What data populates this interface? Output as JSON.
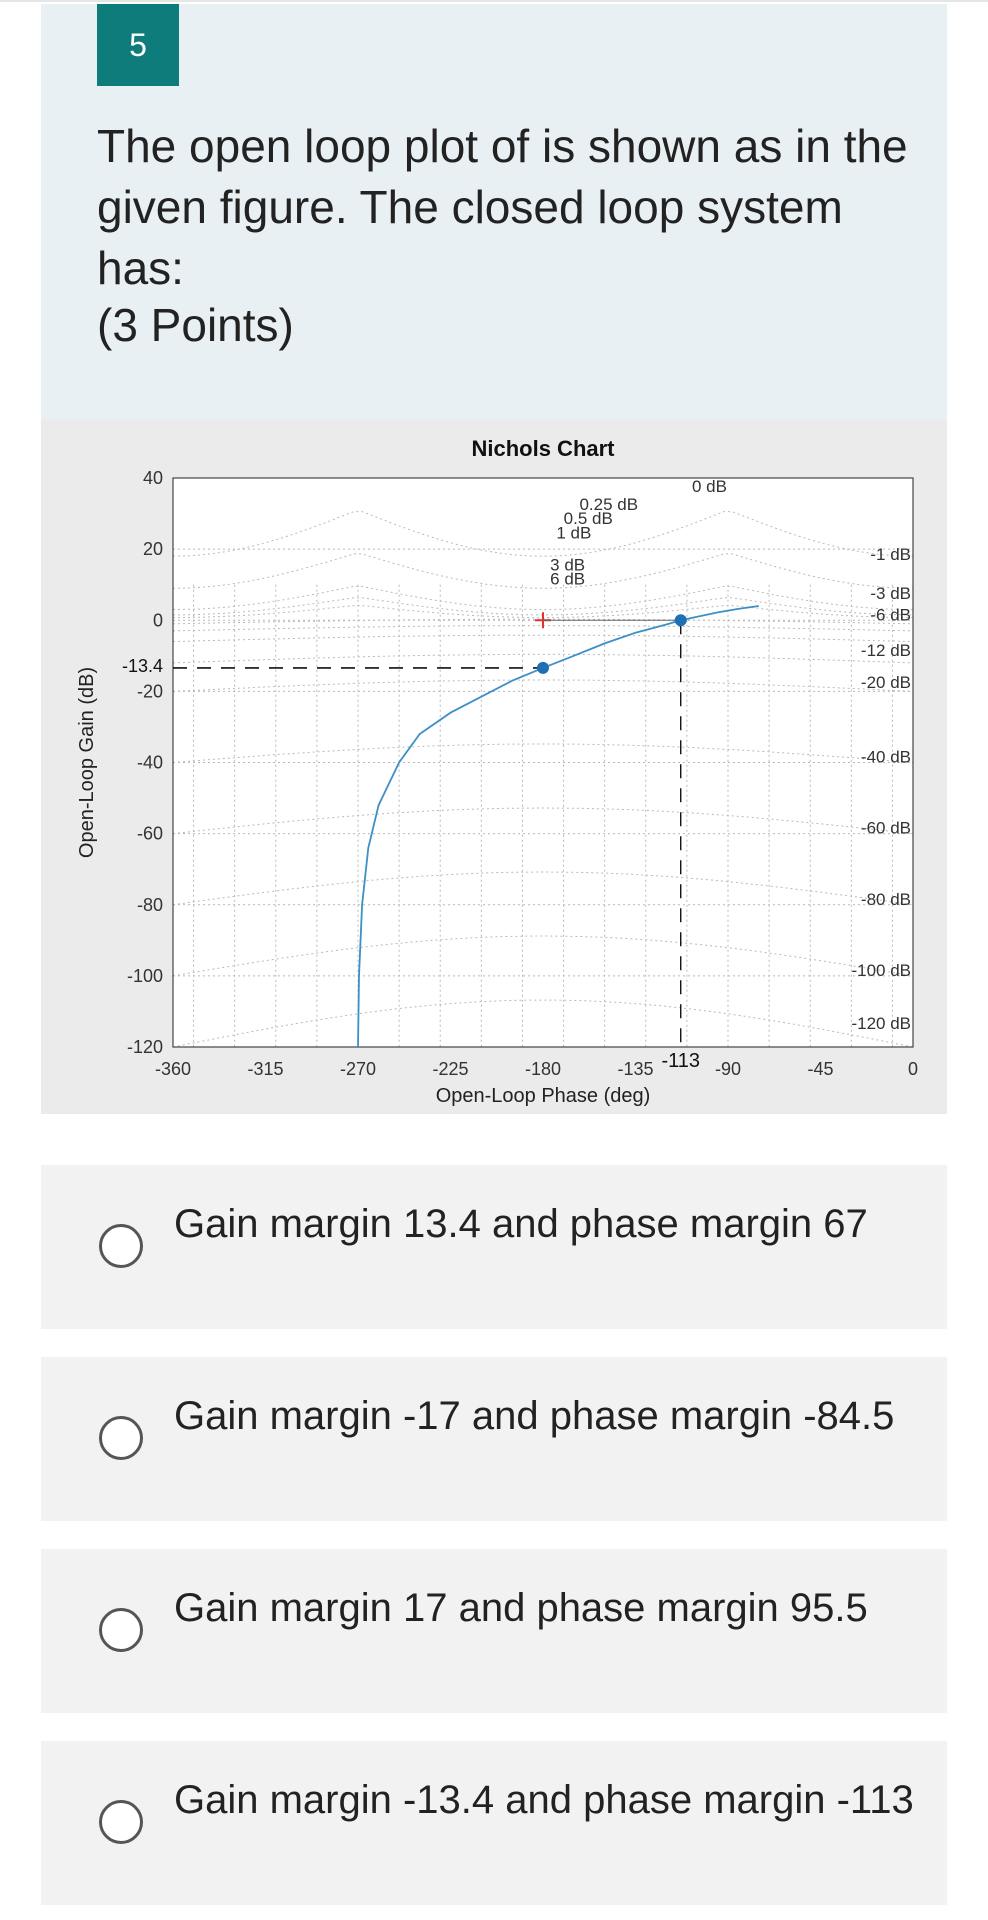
{
  "question": {
    "number": "5",
    "text": "The open loop plot of is shown as in the given figure. The closed loop system has:",
    "points": "(3 Points)"
  },
  "chart_data": {
    "type": "line",
    "title": "Nichols Chart",
    "xlabel": "Open-Loop Phase (deg)",
    "ylabel": "Open-Loop Gain (dB)",
    "xlim": [
      -360,
      0
    ],
    "ylim": [
      -120,
      40
    ],
    "xticks": [
      "-360",
      "-315",
      "-270",
      "-225",
      "-180",
      "-135",
      "-90",
      "-45",
      "0"
    ],
    "yticks": [
      "40",
      "20",
      "0",
      "-20",
      "-40",
      "-60",
      "-80",
      "-100",
      "-120"
    ],
    "grid": true,
    "series": [
      {
        "color": "#3c8fc7",
        "x": [
          -270,
          -269.5,
          -268,
          -265,
          -260,
          -250,
          -240,
          -225,
          -210,
          -195,
          -180,
          -165,
          -150,
          -135,
          -120,
          -113,
          -105,
          -95,
          -85,
          -75
        ],
        "y": [
          -120,
          -100,
          -80,
          -64,
          -52,
          -40,
          -32,
          -26,
          -21.5,
          -17,
          -13.4,
          -10,
          -6.5,
          -3.5,
          -1.2,
          0,
          1,
          2.2,
          3.2,
          4
        ]
      }
    ],
    "markers": [
      {
        "x": -180,
        "y": -13.4
      },
      {
        "x": -113,
        "y": 0
      }
    ],
    "annotations": {
      "gain_margin_label": "-13.4",
      "phase_crossover_label": "-113",
      "contour_labels_top": [
        "0.25 dB",
        "0.5 dB",
        "1 dB",
        "3 dB",
        "6 dB",
        "0 dB"
      ],
      "contour_labels_right": [
        "-1 dB",
        "-3 dB",
        "-6 dB",
        "-12 dB",
        "-20 dB",
        "-40 dB",
        "-60 dB",
        "-80 dB",
        "-100 dB",
        "-120 dB"
      ]
    }
  },
  "options": [
    {
      "label": "Gain margin 13.4 and phase margin 67"
    },
    {
      "label": "Gain margin -17 and phase margin -84.5"
    },
    {
      "label": "Gain margin 17 and phase margin 95.5"
    },
    {
      "label": "Gain margin -13.4 and phase margin -113"
    }
  ],
  "colors": {
    "accent": "#0e7c7b",
    "card_bg": "#e9f0f3",
    "option_bg": "#f2f2f2",
    "curve": "#3c8fc7",
    "marker": "#1f6fb5"
  }
}
